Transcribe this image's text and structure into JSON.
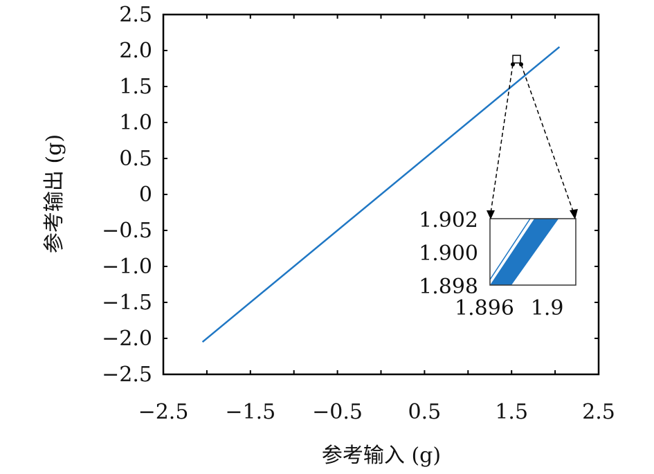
{
  "chart_data": {
    "type": "line",
    "xlabel": "参考输入 (g)",
    "ylabel": "参考输出 (g)",
    "xlim": [
      -2.5,
      2.5
    ],
    "ylim": [
      -2.5,
      2.5
    ],
    "xticks": [
      "−2.5",
      "−1.5",
      "−0.5",
      "0.5",
      "1.5",
      "2.5"
    ],
    "xtick_values": [
      -2.5,
      -1.5,
      -0.5,
      0.5,
      1.5,
      2.5
    ],
    "yticks": [
      "2.5",
      "2.0",
      "1.5",
      "1.0",
      "0.5",
      "0",
      "−0.5",
      "−1.0",
      "−1.5",
      "−2.0",
      "−2.5"
    ],
    "ytick_values": [
      2.5,
      2.0,
      1.5,
      1.0,
      0.5,
      0,
      -0.5,
      -1.0,
      -1.5,
      -2.0,
      -2.5
    ],
    "grid": false,
    "series": [
      {
        "x": [
          -2.05,
          2.05
        ],
        "y": [
          -2.05,
          2.05
        ],
        "color": "#1f77c4"
      }
    ],
    "inset": {
      "xlim": [
        1.896,
        1.902
      ],
      "ylim": [
        1.898,
        1.902
      ],
      "xticks": [
        "1.896",
        "1.9"
      ],
      "xtick_values": [
        1.896,
        1.9
      ],
      "yticks": [
        "1.902",
        "1.900",
        "1.898"
      ],
      "ytick_values": [
        1.902,
        1.9,
        1.898
      ],
      "band": {
        "bottom_x": [
          1.896,
          1.8975
        ],
        "top_x": [
          1.8991,
          1.9008
        ],
        "color": "#1f77c4"
      },
      "zoom_region": {
        "x": [
          1.896,
          1.902
        ],
        "y": [
          1.898,
          1.902
        ]
      }
    }
  }
}
